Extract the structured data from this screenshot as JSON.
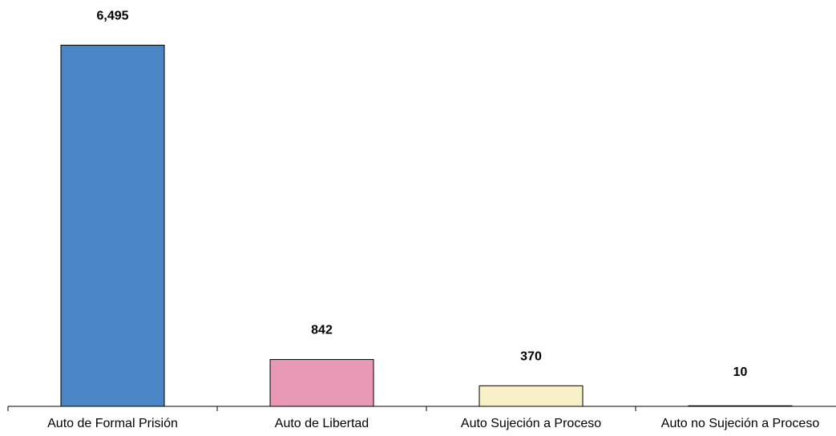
{
  "chart_data": {
    "type": "bar",
    "categories": [
      "Auto de Formal Prisión",
      "Auto de Libertad",
      "Auto Sujeción a Proceso",
      "Auto no Sujeción a Proceso"
    ],
    "values": [
      6495,
      842,
      370,
      10
    ],
    "value_labels": [
      "6,495",
      "842",
      "370",
      "10"
    ],
    "colors": [
      "#4A86C6",
      "#E899B5",
      "#FAF0C8",
      "#FFFFFF"
    ],
    "title": "",
    "xlabel": "",
    "ylabel": "",
    "ylim": [
      0,
      6500
    ],
    "grid": false,
    "legend": "none"
  }
}
